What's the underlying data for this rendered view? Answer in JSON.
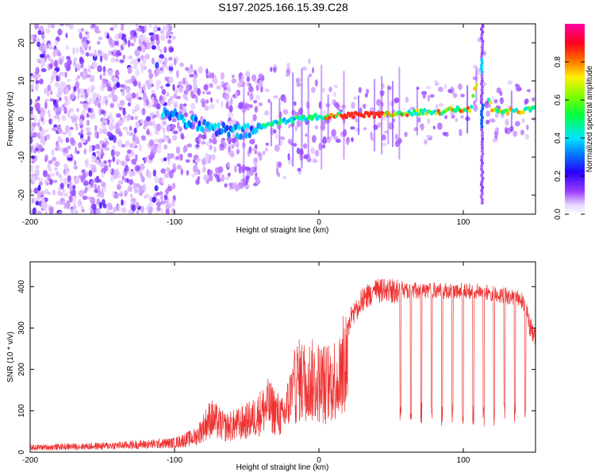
{
  "title": "S197.2025.166.15.39.C28",
  "chart_data": [
    {
      "type": "heatmap",
      "xlabel": "Height of straight line (km)",
      "ylabel": "Frequency (Hz)",
      "xlim": [
        -200,
        150
      ],
      "ylim": [
        -25,
        25
      ],
      "x_ticks": [
        -200,
        -100,
        0,
        100
      ],
      "y_ticks": [
        -20,
        -10,
        0,
        10,
        20
      ],
      "colorbar": {
        "label": "Normalized spectral amplitude",
        "range": [
          0.0,
          1.0
        ],
        "ticks": [
          "0.0",
          "0.2",
          "0.4",
          "0.6",
          "0.8"
        ],
        "colormap": "hsv-rainbow (violet→blue→cyan→green→yellow→red→magenta)"
      },
      "ridge": {
        "description_points_x": [
          -105,
          -95,
          -85,
          -75,
          -65,
          -55,
          -45,
          -35,
          -25,
          -15,
          -5,
          5,
          15,
          25,
          35,
          45,
          55,
          65,
          75,
          85,
          95,
          105,
          112,
          120,
          130,
          140,
          150
        ],
        "frequency_hz": [
          2,
          0,
          -1.5,
          -2.5,
          -3,
          -3.5,
          -3,
          -1.5,
          -0.5,
          0,
          0.5,
          0.5,
          1,
          1,
          1,
          1,
          1.5,
          1.5,
          2,
          2,
          2.5,
          2.5,
          14,
          2,
          2,
          2,
          2.5
        ]
      }
    },
    {
      "type": "line",
      "xlabel": "Height of straight line (km)",
      "ylabel": "SNR (10 * v/v)",
      "xlim": [
        -200,
        150
      ],
      "ylim": [
        0,
        460
      ],
      "x_ticks": [
        -200,
        -100,
        0,
        100
      ],
      "y_ticks": [
        0,
        100,
        200,
        300,
        400
      ],
      "color": "#ee3333",
      "envelope": {
        "x": [
          -200,
          -150,
          -120,
          -100,
          -85,
          -75,
          -65,
          -55,
          -45,
          -35,
          -25,
          -15,
          -5,
          5,
          15,
          22,
          30,
          40,
          50,
          55,
          60,
          80,
          100,
          120,
          140,
          150
        ],
        "snr": [
          15,
          20,
          25,
          30,
          50,
          110,
          80,
          90,
          110,
          150,
          110,
          230,
          230,
          220,
          250,
          350,
          400,
          420,
          420,
          420,
          410,
          410,
          410,
          405,
          390,
          310
        ]
      }
    }
  ],
  "colors": {
    "line": "#ee3333",
    "heatmap_low": "#d9b3ff",
    "heatmap_mid": "#6a00ff",
    "heatmap_high": "#ff2020"
  }
}
